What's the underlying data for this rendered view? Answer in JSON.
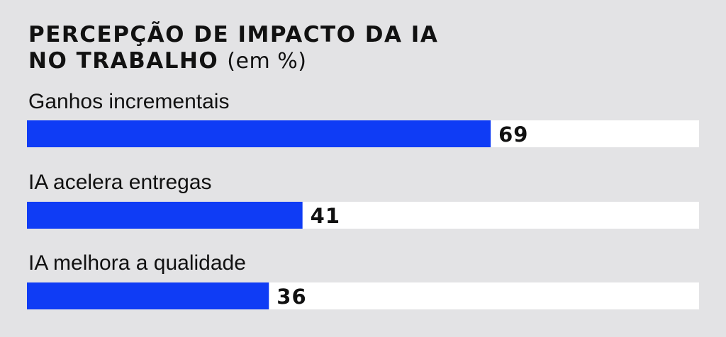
{
  "chart_data": {
    "type": "bar",
    "orientation": "horizontal",
    "title_line1": "PERCEPÇÃO DE IMPACTO DA IA",
    "title_line2": "NO TRABALHO",
    "title_unit": "(em %)",
    "categories": [
      "Ganhos incrementais",
      "IA acelera entregas",
      "IA melhora a qualidade"
    ],
    "values": [
      69,
      41,
      36
    ],
    "xlim": [
      0,
      100
    ],
    "bar_color": "#0f3cf5",
    "track_color": "#ffffff",
    "background_color": "#e3e3e5",
    "grid": false,
    "legend": "none"
  }
}
